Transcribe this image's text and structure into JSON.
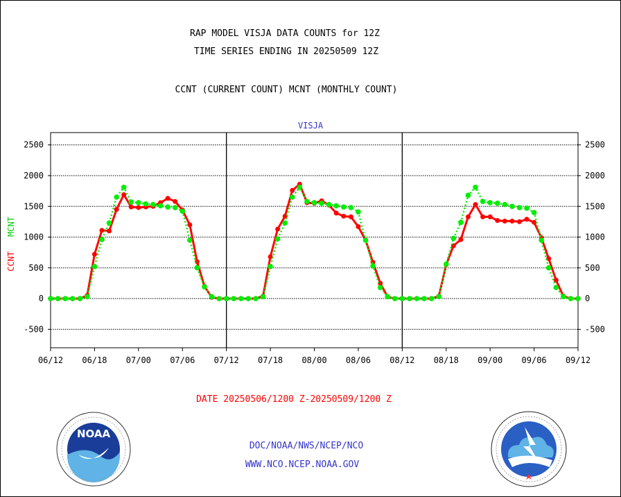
{
  "header": {
    "line1": "RAP MODEL VISJA DATA COUNTS for 12Z",
    "line2": "TIME SERIES ENDING IN 20250509 12Z",
    "line3": "CCNT (CURRENT COUNT) MCNT (MONTHLY COUNT)"
  },
  "footer": {
    "date_range": "DATE 20250506/1200 Z-20250509/1200 Z",
    "org_path": "DOC/NOAA/NWS/NCEP/NCO",
    "url": "WWW.NCO.NCEP.NOAA.GOV"
  },
  "logos": {
    "left": {
      "name": "NOAA",
      "ring_text": "NATIONAL OCEANIC AND ATMOSPHERIC ADMINISTRATION · U.S. DEPARTMENT OF COMMERCE"
    },
    "right": {
      "ring_text": "NATIONAL WEATHER SERVICE"
    }
  },
  "colors": {
    "ccnt": "#ff0000",
    "mcnt": "#00ee00",
    "title_blue": "#3333cc",
    "axis": "#000000"
  },
  "chart_data": {
    "type": "line",
    "title": "VISJA",
    "ylabel_parts": [
      "CCNT",
      "MCNT"
    ],
    "ylim": [
      -800,
      2700
    ],
    "yticks": [
      -500,
      0,
      500,
      1000,
      1500,
      2000,
      2500
    ],
    "grid": true,
    "panel_tick_labels": [
      [
        "06/12",
        "06/18",
        "07/00",
        "07/06",
        "07/12"
      ],
      [
        "07/18",
        "08/00",
        "08/06",
        "08/12"
      ],
      [
        "08/18",
        "09/00",
        "09/06",
        "09/12"
      ]
    ],
    "x_hours_per_panel": [
      0,
      24
    ],
    "series": [
      {
        "name": "CCNT",
        "color": "#ff0000",
        "panels": [
          {
            "x": [
              0,
              1,
              2,
              3,
              4,
              5,
              6,
              7,
              8,
              9,
              10,
              11,
              12,
              13,
              14,
              15,
              16,
              17,
              18,
              19,
              20,
              21,
              22,
              23,
              24
            ],
            "y": [
              0,
              0,
              0,
              0,
              0,
              50,
              720,
              1110,
              1100,
              1450,
              1690,
              1490,
              1480,
              1490,
              1500,
              1560,
              1630,
              1580,
              1440,
              1200,
              600,
              200,
              20,
              0,
              0
            ]
          },
          {
            "x": [
              0,
              1,
              2,
              3,
              4,
              5,
              6,
              7,
              8,
              9,
              10,
              11,
              12,
              13,
              14,
              15,
              16,
              17,
              18,
              19,
              20,
              21,
              22,
              23,
              24
            ],
            "y": [
              0,
              0,
              0,
              0,
              0,
              40,
              680,
              1130,
              1340,
              1760,
              1860,
              1560,
              1550,
              1590,
              1520,
              1390,
              1340,
              1330,
              1170,
              950,
              590,
              250,
              30,
              0,
              0
            ]
          },
          {
            "x": [
              0,
              1,
              2,
              3,
              4,
              5,
              6,
              7,
              8,
              9,
              10,
              11,
              12,
              13,
              14,
              15,
              16,
              17,
              18,
              19,
              20,
              21,
              22,
              23,
              24
            ],
            "y": [
              0,
              0,
              0,
              0,
              0,
              40,
              550,
              860,
              960,
              1330,
              1530,
              1330,
              1330,
              1270,
              1260,
              1260,
              1250,
              1290,
              1240,
              990,
              650,
              300,
              40,
              0,
              0
            ]
          }
        ]
      },
      {
        "name": "MCNT",
        "color": "#00ee00",
        "panels": [
          {
            "x": [
              0,
              1,
              2,
              3,
              4,
              5,
              6,
              7,
              8,
              9,
              10,
              11,
              12,
              13,
              14,
              15,
              16,
              17,
              18,
              19,
              20,
              21,
              22,
              23,
              24
            ],
            "y": [
              0,
              0,
              0,
              0,
              0,
              30,
              520,
              960,
              1230,
              1650,
              1810,
              1570,
              1560,
              1540,
              1530,
              1510,
              1490,
              1480,
              1420,
              950,
              500,
              190,
              30,
              0,
              0
            ]
          },
          {
            "x": [
              0,
              1,
              2,
              3,
              4,
              5,
              6,
              7,
              8,
              9,
              10,
              11,
              12,
              13,
              14,
              15,
              16,
              17,
              18,
              19,
              20,
              21,
              22,
              23,
              24
            ],
            "y": [
              0,
              0,
              0,
              0,
              0,
              30,
              520,
              970,
              1230,
              1650,
              1810,
              1580,
              1560,
              1550,
              1530,
              1510,
              1490,
              1480,
              1410,
              950,
              530,
              180,
              30,
              0,
              0
            ]
          },
          {
            "x": [
              0,
              1,
              2,
              3,
              4,
              5,
              6,
              7,
              8,
              9,
              10,
              11,
              12,
              13,
              14,
              15,
              16,
              17,
              18,
              19,
              20,
              21,
              22,
              23,
              24
            ],
            "y": [
              0,
              0,
              0,
              0,
              0,
              30,
              560,
              980,
              1240,
              1680,
              1810,
              1580,
              1560,
              1550,
              1530,
              1500,
              1480,
              1470,
              1400,
              950,
              500,
              180,
              30,
              0,
              0
            ]
          }
        ]
      }
    ]
  }
}
